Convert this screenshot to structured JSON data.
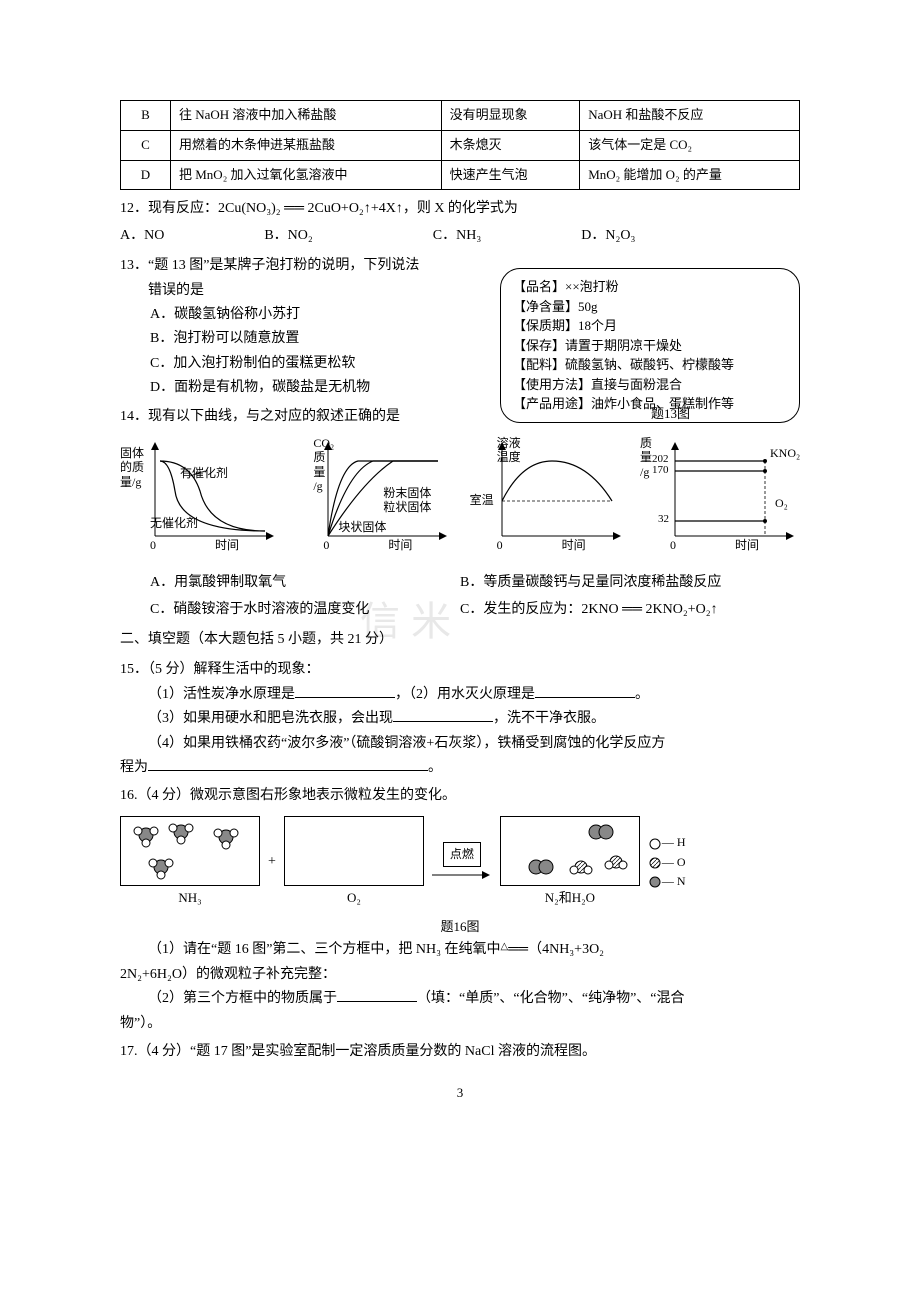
{
  "table11": {
    "rows": [
      {
        "opt": "B",
        "operation": "往 NaOH 溶液中加入稀盐酸",
        "phenomenon": "没有明显现象",
        "conclusion": "NaOH 和盐酸不反应"
      },
      {
        "opt": "C",
        "operation": "用燃着的木条伸进某瓶盐酸",
        "phenomenon": "木条熄灭",
        "conclusion": "该气体一定是 CO₂"
      },
      {
        "opt": "D",
        "operation": "把 MnO₂ 加入过氧化氢溶液中",
        "phenomenon": "快速产生气泡",
        "conclusion": "MnO₂ 能增加 O₂ 的产量"
      }
    ]
  },
  "q12": {
    "stem": "12．现有反应：2Cu(NO₃)₂ ══ 2CuO+O₂↑+4X↑，则 X 的化学式为",
    "A": "A．NO",
    "B": "B．NO₂",
    "C": "C．NH₃",
    "D": "D．N₂O₃"
  },
  "q13": {
    "stem1": "13．“题 13 图”是某牌子泡打粉的说明，下列说法",
    "stem2": "错误的是",
    "A": "A．碳酸氢钠俗称小苏打",
    "B": "B．泡打粉可以随意放置",
    "C": "C．加入泡打粉制伯的蛋糕更松软",
    "D": "D．面粉是有机物，碳酸盐是无机物",
    "box": {
      "l1": "【品名】××泡打粉",
      "l2": "【净含量】50g",
      "l3": "【保质期】18个月",
      "l4": "【保存】请置于期阴凉干燥处",
      "l5": "【配料】硫酸氢钠、碳酸钙、柠檬酸等",
      "l6": "【使用方法】直接与面粉混合",
      "l7": "【产品用途】油炸小食品、蛋糕制作等",
      "caption": "题13图"
    }
  },
  "q14": {
    "stem": "14．现有以下曲线，与之对应的叙述正确的是",
    "A": "A．用氯酸钾制取氧气",
    "B": "B．等质量碳酸钙与足量同浓度稀盐酸反应",
    "C1": "C．硝酸铵溶于水时溶液的温度变化",
    "C2": "C．发生的反应为：2KNO ══ 2KNO₂+O₂↑",
    "diag1": {
      "yaxis": "固体\n的质\n量/g",
      "cat1": "有催化剂",
      "cat2": "无催化剂",
      "xaxis": "时间"
    },
    "diag2": {
      "yaxis": "CO₂\n质\n量\n/g",
      "f1": "粉末固体",
      "f2": "粒状固体",
      "f3": "块状固体",
      "xaxis": "时间"
    },
    "diag3": {
      "yaxis": "溶液\n温度",
      "room": "室温",
      "xaxis": "时间"
    },
    "diag4": {
      "yaxis": "质\n量\n/g",
      "v1": "202",
      "v2": "170",
      "v3": "32",
      "k": "KNO₂",
      "o": "O₂",
      "xaxis": "时间"
    }
  },
  "section2": "二、填空题（本大题包括 5 小题，共 21 分）",
  "q15": {
    "stem": "15．（5 分）解释生活中的现象：",
    "l1a": "（1）活性炭净水原理是",
    "l1b": "，（2）用水灭火原理是",
    "l1c": "。",
    "l2a": "（3）如果用硬水和肥皂洗衣服，会出现",
    "l2b": "，洗不干净衣服。",
    "l3a": "（4）如果用铁桶农药“波尔多液”（硫酸铜溶液+石灰浆），铁桶受到腐蚀的化学反应方",
    "l3b": "程为",
    "l3c": "。"
  },
  "q16": {
    "stem": "16.（4 分）微观示意图右形象地表示微粒发生的变化。",
    "legend_h": "— H",
    "legend_o": "— O",
    "legend_n": "— N",
    "nh3": "NH₃",
    "o2": "O₂",
    "n2h2o": "N₂和H₂O",
    "spark": "点燃",
    "caption": "题16图",
    "p1a": "（1）请在“题 16 图”第二、三个方框中，把 NH₃ 在纯氧中",
    "p1b": "（4NH₃+3O₂",
    "p1c": "2N₂+6H₂O）的微观粒子补充完整：",
    "p2a": "（2）第三个方框中的物质属于",
    "p2b": "（填：“单质”、“化合物”、“纯净物”、“混合",
    "p2c": "物”）。"
  },
  "q17": {
    "stem": "17.（4 分）“题 17 图”是实验室配制一定溶质质量分数的 NaCl 溶液的流程图。"
  },
  "watermark": "信 米",
  "page": "3"
}
